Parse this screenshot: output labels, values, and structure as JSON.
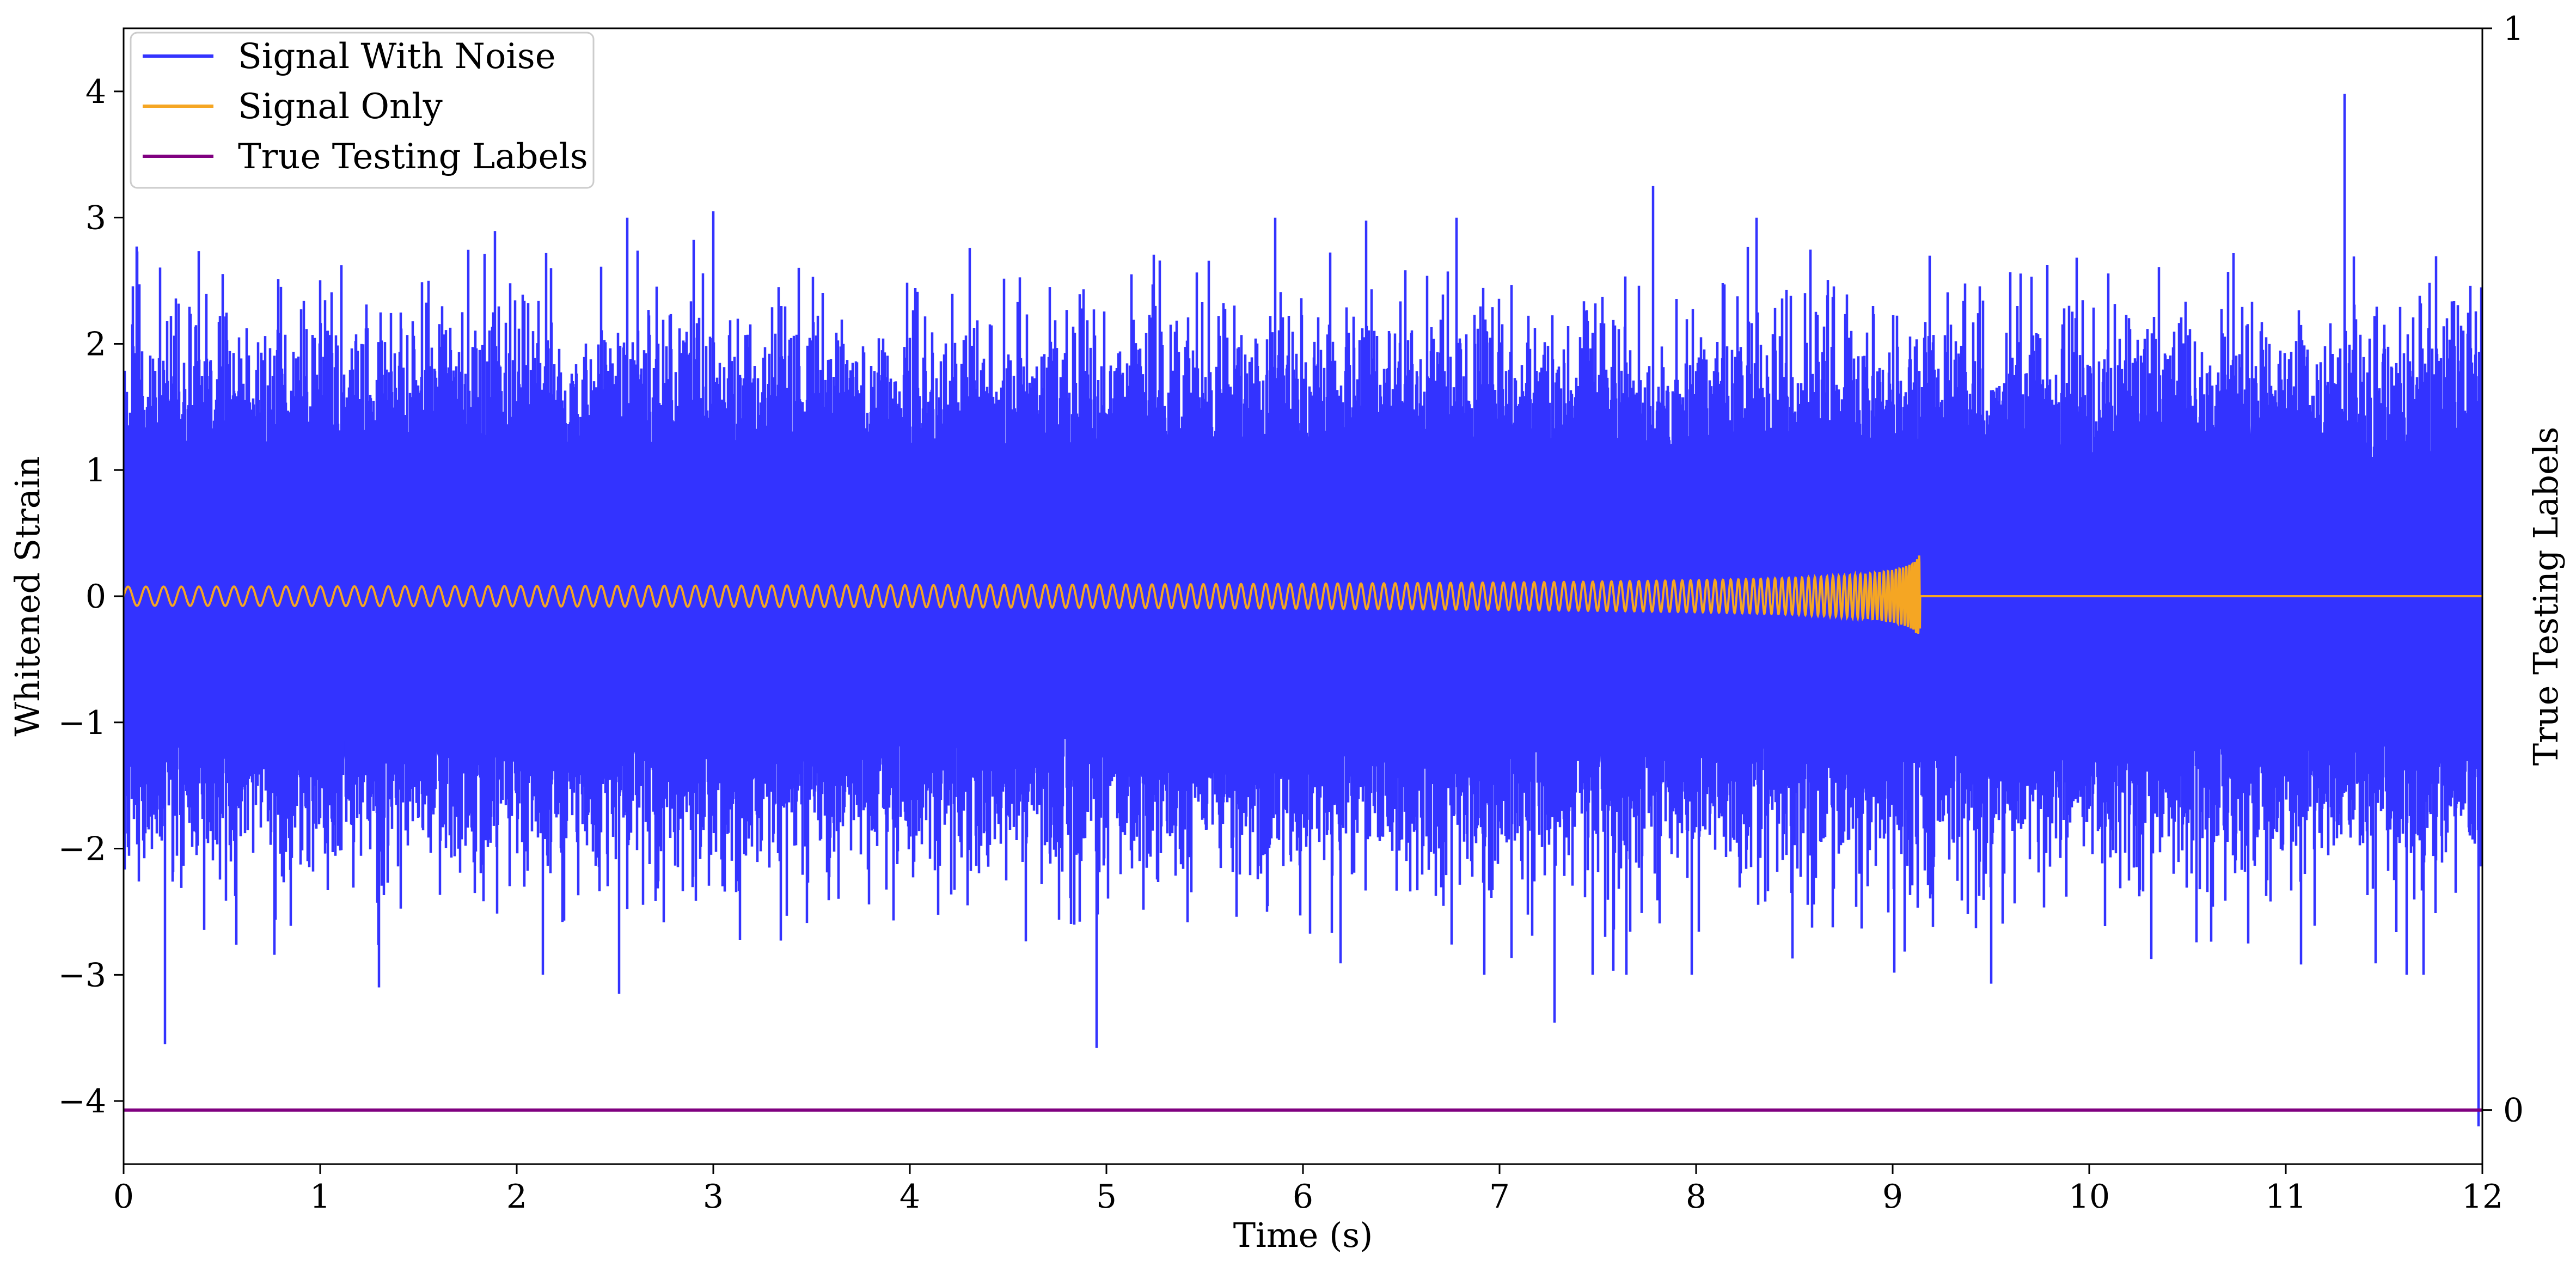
{
  "chart_data": {
    "type": "line",
    "title": "",
    "xlabel": "Time (s)",
    "ylabel": "Whitened Strain",
    "y2label": "True Testing Labels",
    "xlim": [
      0,
      12
    ],
    "ylim": [
      -4.5,
      4.5
    ],
    "y2lim": [
      -0.05,
      1
    ],
    "x_ticks": [
      0,
      1,
      2,
      3,
      4,
      5,
      6,
      7,
      8,
      9,
      10,
      11,
      12
    ],
    "y_ticks": [
      -4,
      -3,
      -2,
      -1,
      0,
      1,
      2,
      3,
      4
    ],
    "y_tick_labels": [
      "−4",
      "−3",
      "−2",
      "−1",
      "0",
      "1",
      "2",
      "3",
      "4"
    ],
    "y2_ticks": [
      0,
      1
    ],
    "y2_tick_labels": [
      "0",
      "1"
    ],
    "grid": false,
    "legend": {
      "position": "top-left",
      "entries": [
        "Signal With Noise",
        "Signal Only",
        "True Testing Labels"
      ]
    },
    "series": [
      {
        "name": "Signal With Noise",
        "color": "#3333ff",
        "axis": "left",
        "kind": "noise",
        "sample_rate_hz": 4096,
        "core_std": 0.55,
        "typical_peak": 2.0,
        "extremes": [
          {
            "x": 0.21,
            "y": -3.55
          },
          {
            "x": 1.3,
            "y": -3.1
          },
          {
            "x": 2.52,
            "y": -3.15
          },
          {
            "x": 3.0,
            "y": 3.05
          },
          {
            "x": 4.95,
            "y": -3.58
          },
          {
            "x": 7.28,
            "y": -3.38
          },
          {
            "x": 7.78,
            "y": 3.25
          },
          {
            "x": 9.5,
            "y": -3.07
          },
          {
            "x": 11.3,
            "y": 3.98
          },
          {
            "x": 11.98,
            "y": -4.2
          }
        ]
      },
      {
        "name": "Signal Only",
        "color": "#f5a623",
        "axis": "left",
        "kind": "chirp",
        "start_time": 0,
        "merger_time": 9.14,
        "peak_amplitude": 0.35,
        "after_merger": 0
      },
      {
        "name": "True Testing Labels",
        "color": "#800080",
        "axis": "right",
        "x": [
          0,
          12
        ],
        "y": [
          0,
          0
        ]
      }
    ]
  }
}
